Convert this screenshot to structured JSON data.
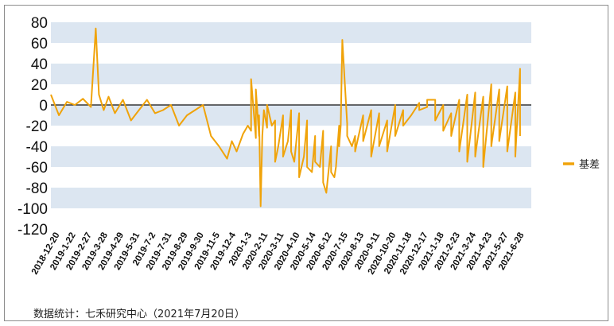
{
  "chart_data": {
    "type": "line",
    "title": "",
    "xlabel": "",
    "ylabel": "",
    "ylim": [
      -120,
      80
    ],
    "y_ticks": [
      80,
      60,
      40,
      20,
      0,
      -20,
      -40,
      -60,
      -80,
      -100,
      -120
    ],
    "grid": "alternating horizontal bands",
    "legend_position": "right",
    "x_ticks": [
      "2018-12-20",
      "2019-1-22",
      "2019-2-27",
      "2019-3-28",
      "2019-4-29",
      "2019-5-31",
      "2019-7-2",
      "2019-7-31",
      "2019-8-29",
      "2019-9-30",
      "2019-11-5",
      "2019-12-4",
      "2020-1-3",
      "2020-2-11",
      "2020-3-11",
      "2020-4-10",
      "2020-5-14",
      "2020-6-12",
      "2020-7-15",
      "2020-8-13",
      "2020-9-11",
      "2020-10-20",
      "2020-11-18",
      "2020-12-17",
      "2021-1-18",
      "2021-2-23",
      "2021-3-24",
      "2021-4-23",
      "2021-5-27",
      "2021-6-28"
    ],
    "series": [
      {
        "name": "基差",
        "color": "#f0a30a",
        "x": [
          0,
          0.5,
          1,
          1.5,
          2,
          2.5,
          2.8,
          3,
          3.3,
          3.6,
          4,
          4.5,
          5,
          5.5,
          6,
          6.5,
          7,
          7.5,
          8,
          8.5,
          9,
          9.5,
          10,
          10.5,
          11,
          11.3,
          11.6,
          12,
          12.3,
          12.5,
          12.8,
          13,
          13.5,
          14,
          14.5,
          15,
          15.5,
          16,
          16.5,
          17,
          17.5,
          18,
          18.5,
          19,
          19.5,
          20,
          20.5,
          21,
          21.5,
          22,
          22.5,
          23,
          23.5,
          24,
          24.5,
          25,
          25.5,
          26,
          26.5,
          27,
          27.5,
          28,
          28.5,
          29,
          29.3
        ],
        "values": [
          10,
          -10,
          3,
          0,
          6,
          -2,
          74,
          10,
          -5,
          8,
          -8,
          5,
          -15,
          -5,
          5,
          -8,
          -5,
          0,
          -20,
          -10,
          -5,
          0,
          -30,
          -40,
          -52,
          -35,
          -45,
          -28,
          -20,
          -25,
          -32,
          -30,
          -22,
          -15,
          -10,
          -5,
          -8,
          -15,
          -30,
          -25,
          -40,
          -20,
          -18,
          -30,
          -10,
          -5,
          -8,
          -15,
          0,
          -5,
          -10,
          2,
          -2,
          5,
          0,
          -8,
          5,
          10,
          12,
          8,
          20,
          15,
          18,
          12,
          35
        ],
        "x2": [
          12.5,
          12.8,
          13,
          13.1,
          13.2,
          13.3,
          13.5,
          13.8,
          14,
          14.2,
          14.5,
          14.8,
          15,
          15.2,
          15.5,
          15.8,
          16,
          16.3,
          16.5,
          16.8,
          17,
          17.2,
          17.5,
          17.7,
          17.8,
          18,
          18.1,
          18.2,
          18.5,
          18.8,
          19,
          19.5,
          20,
          20.5,
          21,
          21.5,
          22,
          22.5,
          23,
          23.5,
          24,
          24.5,
          25,
          25.5,
          26,
          26.5,
          27,
          27.5,
          28,
          28.5,
          29,
          29.3
        ],
        "values2": [
          25,
          15,
          -10,
          -98,
          -30,
          -5,
          0,
          -20,
          -55,
          -40,
          -50,
          -35,
          -45,
          -55,
          -70,
          -50,
          -60,
          -65,
          -55,
          -60,
          -75,
          -85,
          -65,
          -70,
          -60,
          -40,
          -20,
          63,
          -30,
          -40,
          -45,
          -35,
          -50,
          -40,
          -45,
          -30,
          -20,
          -10,
          -5,
          5,
          -15,
          -25,
          -30,
          -45,
          -55,
          -50,
          -60,
          -40,
          -35,
          -45,
          -50,
          -30
        ]
      }
    ],
    "source_note": "数据统计：七禾研究中心（2021年7月20日）"
  }
}
